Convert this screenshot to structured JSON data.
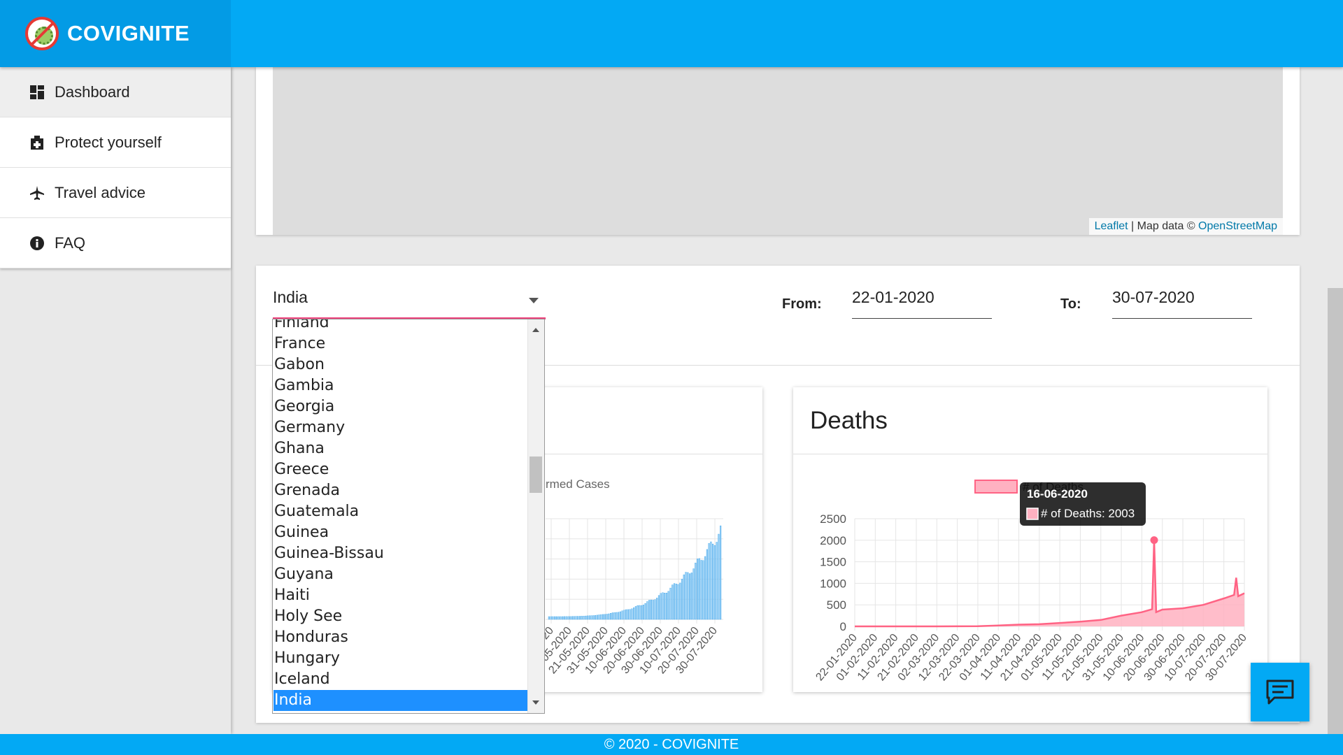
{
  "app": {
    "name": "COVIGNITE"
  },
  "sidebar": {
    "items": [
      {
        "label": "Dashboard",
        "icon": "dashboard-icon"
      },
      {
        "label": "Protect yourself",
        "icon": "protect-icon"
      },
      {
        "label": "Travel advice",
        "icon": "airplane-icon"
      },
      {
        "label": "FAQ",
        "icon": "info-icon"
      }
    ]
  },
  "map": {
    "attribution_leaflet": "Leaflet",
    "attribution_sep": " | Map data © ",
    "attribution_osm": "OpenStreetMap"
  },
  "filters": {
    "country": "India",
    "from_label": "From:",
    "from_value": "22-01-2020",
    "to_label": "To:",
    "to_value": "30-07-2020"
  },
  "dropdown": {
    "options": [
      "Finland",
      "France",
      "Gabon",
      "Gambia",
      "Georgia",
      "Germany",
      "Ghana",
      "Greece",
      "Grenada",
      "Guatemala",
      "Guinea",
      "Guinea-Bissau",
      "Guyana",
      "Haiti",
      "Holy See",
      "Honduras",
      "Hungary",
      "Iceland",
      "India"
    ],
    "selected": "India"
  },
  "confirmed_chart": {
    "legend_partial": "rmed Cases",
    "x_labels_partial": [
      "020",
      "11-05-2020",
      "21-05-2020",
      "31-05-2020",
      "10-06-2020",
      "20-06-2020",
      "30-06-2020",
      "10-07-2020",
      "20-07-2020",
      "30-07-2020"
    ]
  },
  "colors": {
    "primary": "#03a9f4",
    "deaths": "#ff6384",
    "deaths_fill": "#ffb1c1",
    "cases": "#36a2eb",
    "selected_option": "#1e90ff"
  },
  "chart_data": [
    {
      "type": "area",
      "title": "Deaths",
      "series": [
        {
          "name": "# of Deaths",
          "x": [
            "22-01-2020",
            "01-02-2020",
            "11-02-2020",
            "21-02-2020",
            "02-03-2020",
            "12-03-2020",
            "22-03-2020",
            "01-04-2020",
            "11-04-2020",
            "21-04-2020",
            "01-05-2020",
            "11-05-2020",
            "21-05-2020",
            "31-05-2020",
            "10-06-2020",
            "15-06-2020",
            "16-06-2020",
            "17-06-2020",
            "20-06-2020",
            "30-06-2020",
            "10-07-2020",
            "20-07-2020",
            "25-07-2020",
            "26-07-2020",
            "27-07-2020",
            "30-07-2020"
          ],
          "values": [
            0,
            0,
            0,
            0,
            0,
            2,
            5,
            20,
            40,
            50,
            80,
            110,
            150,
            250,
            330,
            400,
            2003,
            330,
            390,
            420,
            500,
            650,
            730,
            1130,
            700,
            770
          ]
        }
      ],
      "x_tick_labels": [
        "22-01-2020",
        "01-02-2020",
        "11-02-2020",
        "21-02-2020",
        "02-03-2020",
        "12-03-2020",
        "22-03-2020",
        "01-04-2020",
        "11-04-2020",
        "21-04-2020",
        "01-05-2020",
        "11-05-2020",
        "21-05-2020",
        "31-05-2020",
        "10-06-2020",
        "20-06-2020",
        "30-06-2020",
        "10-07-2020",
        "20-07-2020",
        "30-07-2020"
      ],
      "y_ticks": [
        0,
        500,
        1000,
        1500,
        2000,
        2500
      ],
      "ylim": [
        0,
        2500
      ],
      "grid": true,
      "legend": "top",
      "tooltip": {
        "title": "16-06-2020",
        "label": "# of Deaths: 2003"
      }
    }
  ],
  "footer": {
    "text": "© 2020 - COVIGNITE"
  }
}
